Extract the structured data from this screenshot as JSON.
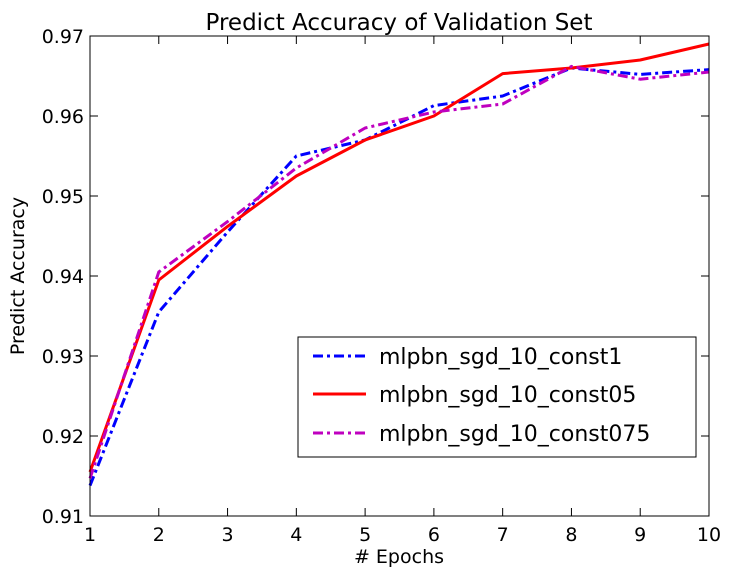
{
  "chart_data": {
    "type": "line",
    "title": "Predict Accuracy of Validation Set",
    "xlabel": "# Epochs",
    "ylabel": "Predict Accuracy",
    "xlim": [
      1,
      10
    ],
    "ylim": [
      0.91,
      0.97
    ],
    "xticks": [
      "1",
      "2",
      "3",
      "4",
      "5",
      "6",
      "7",
      "8",
      "9",
      "10"
    ],
    "yticks": [
      "0.91",
      "0.92",
      "0.93",
      "0.94",
      "0.95",
      "0.96",
      "0.97"
    ],
    "grid": false,
    "legend_position": "lower-right",
    "x": [
      1,
      2,
      3,
      4,
      5,
      6,
      7,
      8,
      9,
      10
    ],
    "series": [
      {
        "name": "mlpbn_sgd_10_const1",
        "color": "#0000ff",
        "style": "dashdot",
        "values": [
          0.9138,
          0.9355,
          0.9455,
          0.955,
          0.957,
          0.9613,
          0.9625,
          0.966,
          0.9652,
          0.9658
        ]
      },
      {
        "name": "mlpbn_sgd_10_const05",
        "color": "#ff0000",
        "style": "solid",
        "values": [
          0.9155,
          0.9395,
          0.9462,
          0.9525,
          0.957,
          0.96,
          0.9653,
          0.966,
          0.967,
          0.969
        ]
      },
      {
        "name": "mlpbn_sgd_10_const075",
        "color": "#bf00bf",
        "style": "dashdot",
        "values": [
          0.9147,
          0.9405,
          0.9468,
          0.9535,
          0.9585,
          0.9605,
          0.9615,
          0.9662,
          0.9646,
          0.9655
        ]
      }
    ]
  }
}
